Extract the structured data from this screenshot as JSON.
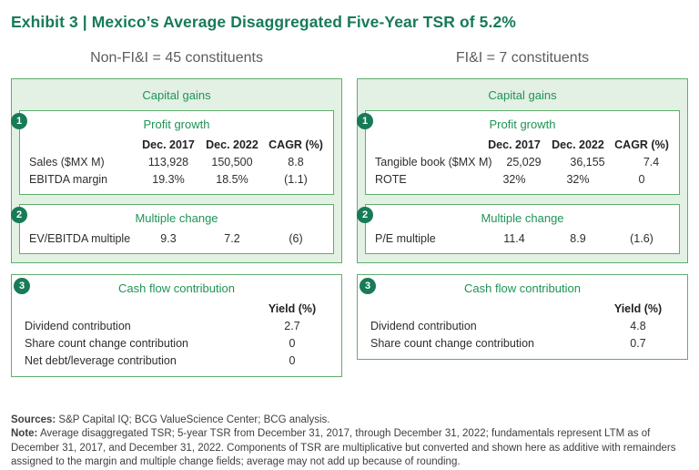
{
  "title": "Exhibit 3 | Mexico’s Average Disaggregated Five-Year TSR of 5.2%",
  "colors": {
    "accent_dark": "#177b57",
    "accent_text": "#1f9356",
    "panel_bg": "#e3f0e4",
    "border_green": "#5fae6d",
    "heading_gray": "#5d5d5d"
  },
  "columns": [
    {
      "heading": "Non-FI&I = 45 constituents",
      "capital_gains_label": "Capital gains",
      "profit_growth": {
        "badge": "1",
        "title": "Profit growth",
        "col_headers": [
          "Dec. 2017",
          "Dec. 2022",
          "CAGR (%)"
        ],
        "rows": [
          {
            "label": "Sales ($MX M)",
            "values": [
              "113,928",
              "150,500",
              "8.8"
            ]
          },
          {
            "label": "EBITDA margin",
            "values": [
              "19.3%",
              "18.5%",
              "(1.1)"
            ]
          }
        ]
      },
      "multiple_change": {
        "badge": "2",
        "title": "Multiple change",
        "rows": [
          {
            "label": "EV/EBITDA multiple",
            "values": [
              "9.3",
              "7.2",
              "(6)"
            ]
          }
        ]
      },
      "cash_flow": {
        "badge": "3",
        "title": "Cash flow contribution",
        "col_header": "Yield (%)",
        "rows": [
          {
            "label": "Dividend contribution",
            "value": "2.7"
          },
          {
            "label": "Share count change contribution",
            "value": "0"
          },
          {
            "label": "Net debt/leverage contribution",
            "value": "0"
          }
        ]
      }
    },
    {
      "heading": "FI&I = 7 constituents",
      "capital_gains_label": "Capital gains",
      "profit_growth": {
        "badge": "1",
        "title": "Profit growth",
        "col_headers": [
          "Dec. 2017",
          "Dec. 2022",
          "CAGR (%)"
        ],
        "rows": [
          {
            "label": "Tangible book ($MX M)",
            "values": [
              "25,029",
              "36,155",
              "7.4"
            ]
          },
          {
            "label": "ROTE",
            "values": [
              "32%",
              "32%",
              "0"
            ]
          }
        ]
      },
      "multiple_change": {
        "badge": "2",
        "title": "Multiple change",
        "rows": [
          {
            "label": "P/E multiple",
            "values": [
              "11.4",
              "8.9",
              "(1.6)"
            ]
          }
        ]
      },
      "cash_flow": {
        "badge": "3",
        "title": "Cash flow contribution",
        "col_header": "Yield (%)",
        "rows": [
          {
            "label": "Dividend contribution",
            "value": "4.8"
          },
          {
            "label": "Share count change contribution",
            "value": "0.7"
          }
        ]
      }
    }
  ],
  "footer": {
    "sources_label": "Sources:",
    "sources_text": " S&P Capital IQ; BCG ValueScience Center; BCG analysis.",
    "note_label": "Note:",
    "note_text": " Average disaggregated TSR; 5-year TSR from December 31, 2017, through December 31, 2022; fundamentals represent LTM as of December 31, 2017, and December 31, 2022. Components of TSR are multiplicative but converted and shown here as additive with remainders assigned to the margin and multiple change fields; average may not add up because of rounding."
  }
}
